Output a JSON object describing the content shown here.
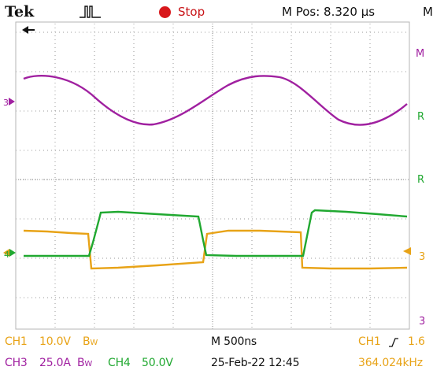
{
  "header": {
    "brand": "Tek",
    "acq_state": "Stop",
    "horizontal_position": "M Pos: 8.320 µs",
    "right_clip": "M",
    "trigger_icon": "pulse-trigger-icon",
    "stop_indicator_icon": "red-dot-icon"
  },
  "markers": {
    "ch3_left": "3",
    "ch4_left": "4",
    "right_top": "M",
    "right_r1": "R",
    "right_r2": "R",
    "right_mid": "3",
    "right_low": "3"
  },
  "footer": {
    "ch1_label": "CH1",
    "ch1_scale": "10.0V",
    "ch1_bw": "B",
    "ch1_bw_sub": "W",
    "timebase": "M 500ns",
    "trigger_label": "CH1",
    "trigger_level": "1.6",
    "ch3_label": "CH3",
    "ch3_scale": "25.0A",
    "ch3_bw": "B",
    "ch3_bw_sub": "W",
    "ch4_label": "CH4",
    "ch4_scale": "50.0V",
    "datetime": "25-Feb-22 12:45",
    "frequency": "364.024kHz"
  },
  "colors": {
    "ch1": "#e8a317",
    "ch3": "#a020a0",
    "ch4": "#20a830",
    "stop": "#d8171b"
  }
}
